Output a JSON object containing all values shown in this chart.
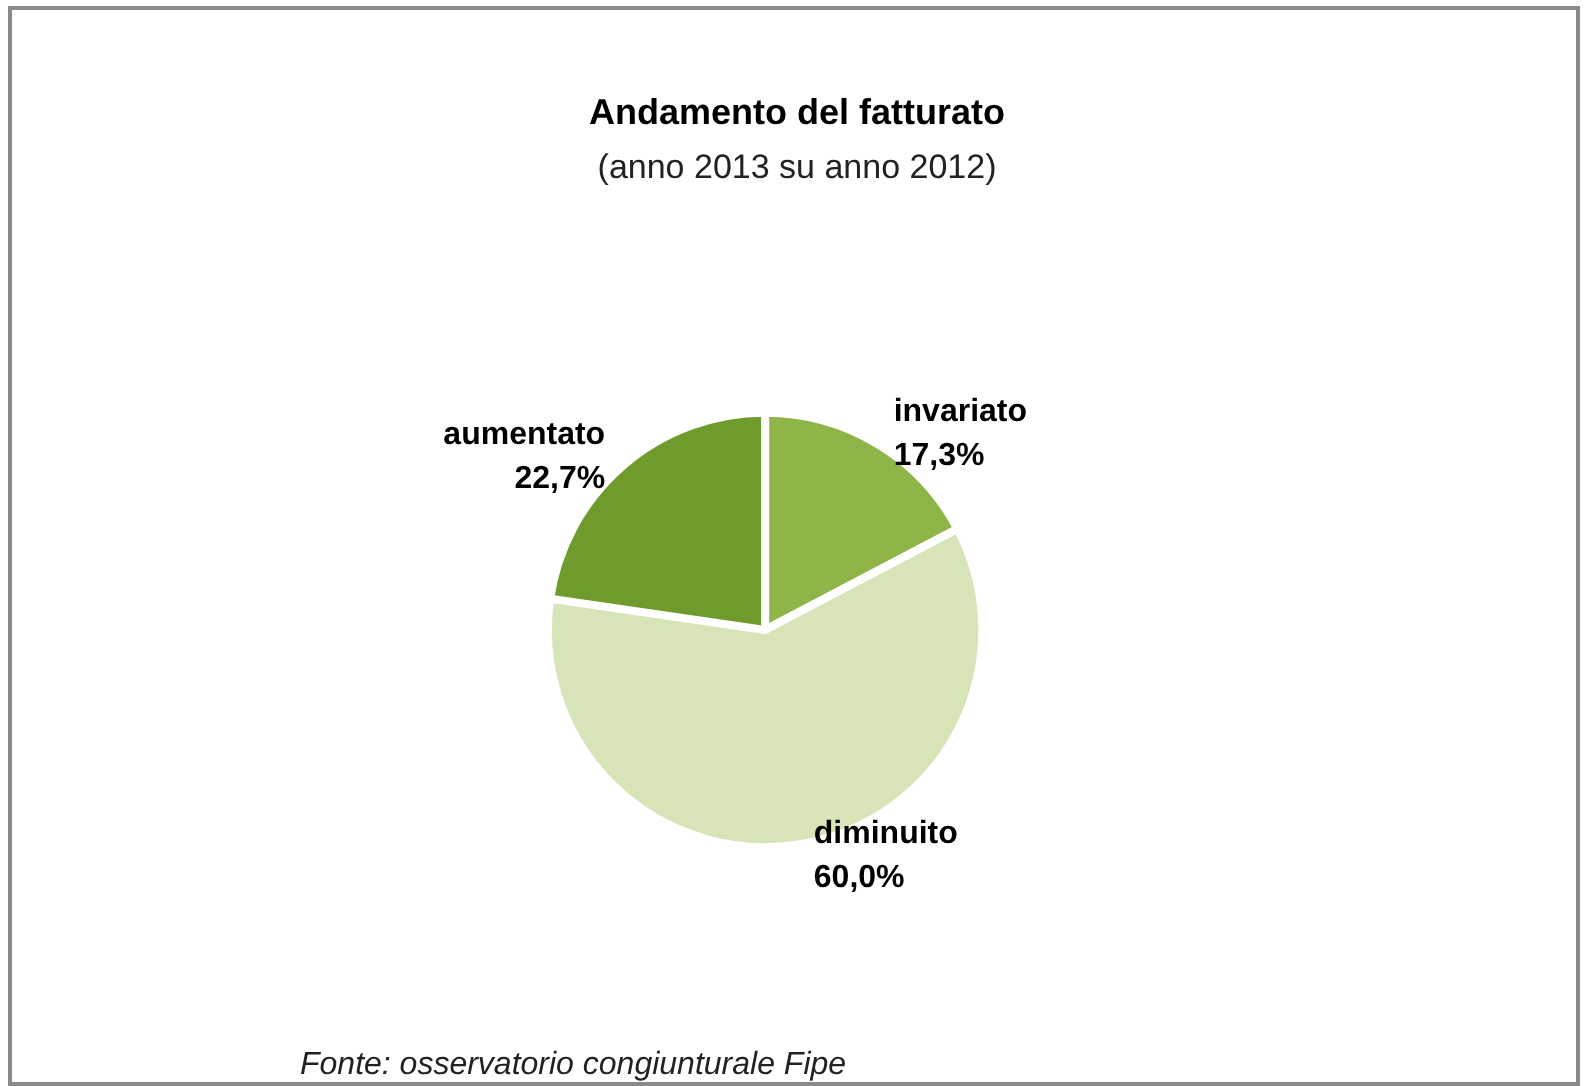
{
  "chart_data": {
    "type": "pie",
    "title": "Andamento del fatturato",
    "subtitle": "(anno 2013 su anno 2012)",
    "categories": [
      "invariato",
      "diminuito",
      "aumentato"
    ],
    "values": [
      17.3,
      60.0,
      22.7
    ],
    "colors": [
      "#8fb447",
      "#d6e4b8",
      "#6f9a2c"
    ],
    "value_labels": [
      "17,3%",
      "60,0%",
      "22,7%"
    ],
    "legend": false,
    "annotations": [
      "Fonte: osservatorio congiunturale Fipe"
    ]
  }
}
